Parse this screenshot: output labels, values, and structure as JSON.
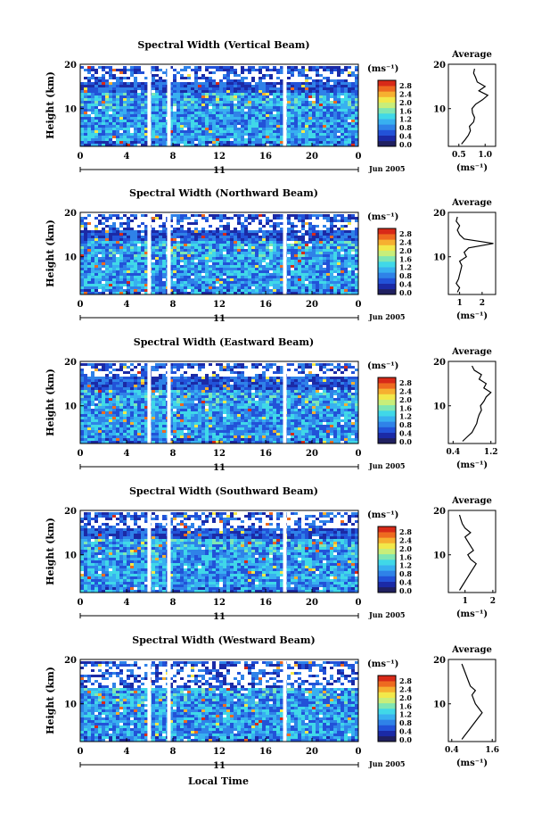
{
  "page": {
    "xaxis_label": "Local Time",
    "height_label": "Height (km)",
    "unit_label": "(ms⁻¹)",
    "average_title": "Average",
    "date_label": "Jun 2005",
    "day_label": "11"
  },
  "colorbar": {
    "ticks": [
      "0.0",
      "0.4",
      "0.8",
      "1.2",
      "1.6",
      "2.0",
      "2.4",
      "2.8"
    ],
    "colors": [
      "#202060",
      "#1b2aa6",
      "#2252d8",
      "#2f82e8",
      "#38b0f0",
      "#40d8e8",
      "#7fe6b4",
      "#c8ee7a",
      "#f2e84a",
      "#f6b030",
      "#ee6a20",
      "#d82a18"
    ]
  },
  "chart_data": [
    {
      "type": "heatmap",
      "title": "Spectral Width (Vertical Beam)",
      "xlabel": "Local Time",
      "ylabel": "Height (km)",
      "x_ticks": [
        "0",
        "4",
        "8",
        "12",
        "16",
        "20",
        "0"
      ],
      "xlim": [
        0,
        24
      ],
      "y_ticks": [
        "20",
        "10"
      ],
      "ylim": [
        1.5,
        20
      ],
      "colorbar_range": [
        0.0,
        2.8
      ],
      "gaps_hours": [
        5.8,
        7.5,
        17.5
      ],
      "average": {
        "title": "Average",
        "xlabel": "(ms⁻¹)",
        "x_ticks": [
          "0.5",
          "1.0"
        ],
        "xlim": [
          0.3,
          1.2
        ],
        "height": [
          2,
          3,
          4,
          5,
          6,
          7,
          8,
          9,
          10,
          11,
          12,
          13,
          14,
          15,
          16,
          17,
          18,
          19
        ],
        "value": [
          0.55,
          0.62,
          0.68,
          0.72,
          0.7,
          0.78,
          0.8,
          0.76,
          0.75,
          0.82,
          0.95,
          1.05,
          0.88,
          1.0,
          0.85,
          0.82,
          0.78,
          0.8
        ]
      }
    },
    {
      "type": "heatmap",
      "title": "Spectral Width (Northward Beam)",
      "xlabel": "Local Time",
      "ylabel": "Height (km)",
      "x_ticks": [
        "0",
        "4",
        "8",
        "12",
        "16",
        "20",
        "0"
      ],
      "xlim": [
        0,
        24
      ],
      "y_ticks": [
        "20",
        "10"
      ],
      "ylim": [
        1.5,
        20
      ],
      "colorbar_range": [
        0.0,
        2.8
      ],
      "gaps_hours": [
        5.8,
        7.5,
        17.5
      ],
      "average": {
        "title": "Average",
        "xlabel": "(ms⁻¹)",
        "x_ticks": [
          "1",
          "2"
        ],
        "xlim": [
          0.5,
          2.6
        ],
        "height": [
          2,
          3,
          4,
          5,
          6,
          7,
          8,
          9,
          10,
          11,
          12,
          13,
          14,
          15,
          16,
          17,
          18,
          19
        ],
        "value": [
          0.9,
          1.0,
          0.85,
          0.95,
          1.0,
          1.05,
          1.1,
          1.0,
          1.3,
          1.2,
          1.4,
          2.5,
          1.2,
          1.0,
          0.9,
          1.0,
          0.85,
          0.9
        ]
      }
    },
    {
      "type": "heatmap",
      "title": "Spectral Width (Eastward Beam)",
      "xlabel": "Local Time",
      "ylabel": "Height (km)",
      "x_ticks": [
        "0",
        "4",
        "8",
        "12",
        "16",
        "20",
        "0"
      ],
      "xlim": [
        0,
        24
      ],
      "y_ticks": [
        "20",
        "10"
      ],
      "ylim": [
        1.5,
        20
      ],
      "colorbar_range": [
        0.0,
        2.8
      ],
      "gaps_hours": [
        5.8,
        7.5,
        17.5
      ],
      "average": {
        "title": "Average",
        "xlabel": "(ms⁻¹)",
        "x_ticks": [
          "0.4",
          "1.2"
        ],
        "xlim": [
          0.3,
          1.3
        ],
        "height": [
          2,
          3,
          4,
          5,
          6,
          7,
          8,
          9,
          10,
          11,
          12,
          13,
          14,
          15,
          16,
          17,
          18,
          19
        ],
        "value": [
          0.6,
          0.7,
          0.8,
          0.85,
          0.9,
          0.92,
          0.95,
          1.0,
          0.98,
          1.05,
          1.1,
          1.2,
          1.05,
          1.1,
          0.95,
          1.0,
          0.85,
          0.8
        ]
      }
    },
    {
      "type": "heatmap",
      "title": "Spectral Width (Southward Beam)",
      "xlabel": "Local Time",
      "ylabel": "Height (km)",
      "x_ticks": [
        "0",
        "4",
        "8",
        "12",
        "16",
        "20",
        "0"
      ],
      "xlim": [
        0,
        24
      ],
      "y_ticks": [
        "20",
        "10"
      ],
      "ylim": [
        1.5,
        20
      ],
      "colorbar_range": [
        0.0,
        2.8
      ],
      "gaps_hours": [
        5.8,
        7.5,
        17.5
      ],
      "average": {
        "title": "Average",
        "xlabel": "(ms⁻¹)",
        "x_ticks": [
          "1",
          "2"
        ],
        "xlim": [
          0.4,
          2.1
        ],
        "height": [
          2,
          3,
          4,
          5,
          6,
          7,
          8,
          9,
          10,
          11,
          12,
          13,
          14,
          15,
          16,
          17,
          18,
          19
        ],
        "value": [
          0.8,
          0.9,
          1.0,
          1.1,
          1.2,
          1.3,
          1.4,
          1.2,
          1.1,
          1.3,
          1.2,
          1.1,
          1.0,
          1.2,
          1.0,
          0.9,
          0.85,
          0.8
        ]
      }
    },
    {
      "type": "heatmap",
      "title": "Spectral Width (Westward Beam)",
      "xlabel": "Local Time",
      "ylabel": "Height (km)",
      "x_ticks": [
        "0",
        "4",
        "8",
        "12",
        "16",
        "20",
        "0"
      ],
      "xlim": [
        0,
        24
      ],
      "y_ticks": [
        "20",
        "10"
      ],
      "ylim": [
        1.5,
        20
      ],
      "colorbar_range": [
        0.0,
        2.8
      ],
      "gaps_hours": [
        5.8,
        7.5,
        17.5
      ],
      "average": {
        "title": "Average",
        "xlabel": "(ms⁻¹)",
        "x_ticks": [
          "0.4",
          "1.6"
        ],
        "xlim": [
          0.3,
          1.7
        ],
        "height": [
          2,
          3,
          4,
          5,
          6,
          7,
          8,
          9,
          10,
          11,
          12,
          13,
          14,
          15,
          16,
          17,
          18,
          19
        ],
        "value": [
          0.7,
          0.8,
          0.9,
          1.0,
          1.1,
          1.2,
          1.3,
          1.2,
          1.1,
          1.05,
          1.0,
          1.1,
          0.95,
          0.9,
          0.85,
          0.8,
          0.75,
          0.7
        ]
      }
    }
  ]
}
